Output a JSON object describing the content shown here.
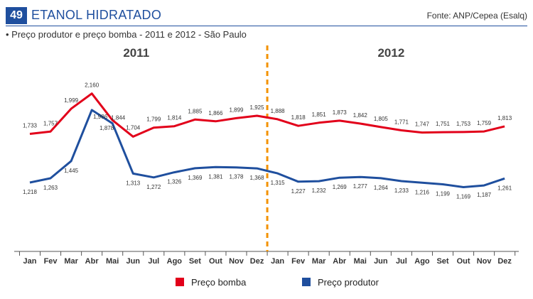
{
  "header": {
    "number": "49",
    "title": "ETANOL HIDRATADO",
    "source": "Fonte: ANP/Cepea (Esalq)"
  },
  "subtitle": "• Preço produtor e preço bomba - 2011 e 2012 - São Paulo",
  "colors": {
    "bomba": "#e2001a",
    "produtor": "#1f4f9e",
    "divider": "#f39200",
    "badge": "#1f4f9e"
  },
  "chart_data": {
    "type": "line",
    "year_labels": [
      "2011",
      "2012"
    ],
    "categories": [
      "Jan",
      "Fev",
      "Mar",
      "Abr",
      "Mai",
      "Jun",
      "Jul",
      "Ago",
      "Set",
      "Out",
      "Nov",
      "Dez",
      "Jan",
      "Fev",
      "Mar",
      "Abr",
      "Mai",
      "Jun",
      "Jul",
      "Ago",
      "Set",
      "Out",
      "Nov",
      "Dez"
    ],
    "series": [
      {
        "name": "Preço bomba",
        "color": "#e2001a",
        "values": [
          1.733,
          1.757,
          1.999,
          2.16,
          1.878,
          1.704,
          1.799,
          1.814,
          1.885,
          1.866,
          1.899,
          1.925,
          1.888,
          1.818,
          1.851,
          1.873,
          1.842,
          1.805,
          1.771,
          1.747,
          1.751,
          1.753,
          1.759,
          1.813
        ],
        "labels": [
          "1,733",
          "1,757",
          "1,999",
          "2,160",
          "1,878",
          "1,704",
          "1,799",
          "1,814",
          "1,885",
          "1,866",
          "1,899",
          "1,925",
          "1,888",
          "1,818",
          "1,851",
          "1,873",
          "1,842",
          "1,805",
          "1,771",
          "1,747",
          "1,751",
          "1,753",
          "1,759",
          "1,813"
        ]
      },
      {
        "name": "Preço produtor",
        "color": "#1f4f9e",
        "values": [
          1.218,
          1.263,
          1.445,
          1.986,
          1.844,
          1.313,
          1.272,
          1.326,
          1.369,
          1.381,
          1.378,
          1.368,
          1.315,
          1.227,
          1.232,
          1.269,
          1.277,
          1.264,
          1.233,
          1.216,
          1.199,
          1.169,
          1.187,
          1.261
        ],
        "labels": [
          "1,218",
          "1,263",
          "1,445",
          "1,986",
          "1,844",
          "1,313",
          "1,272",
          "1,326",
          "1,369",
          "1,381",
          "1,378",
          "1,368",
          "1,315",
          "1,227",
          "1,232",
          "1,269",
          "1,277",
          "1,264",
          "1,233",
          "1,216",
          "1,199",
          "1,169",
          "1,187",
          "1,261"
        ]
      }
    ],
    "ylim": [
      0.6,
      2.4
    ],
    "grid": false,
    "legend": "bottom"
  }
}
